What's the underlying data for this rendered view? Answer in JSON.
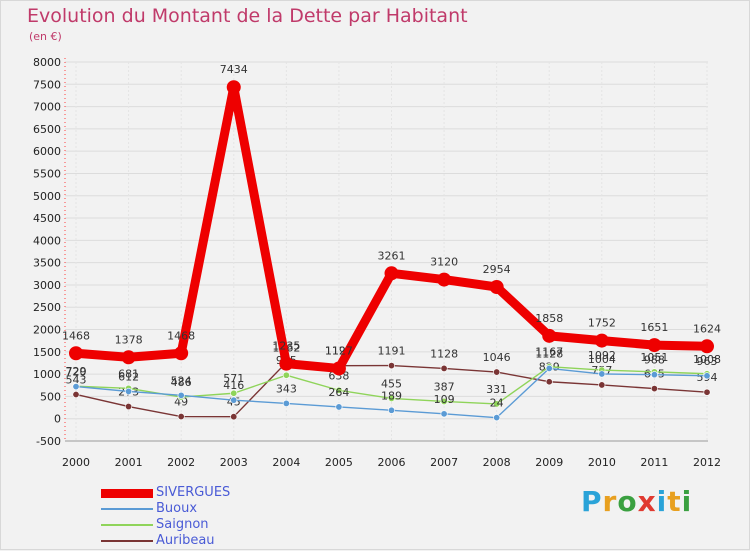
{
  "title": "Evolution du Montant de la Dette par Habitant",
  "subtitle": "(en €)",
  "logo": {
    "letters": [
      "P",
      "r",
      "o",
      "x",
      "i",
      "t",
      "i"
    ],
    "colors": [
      "#2aa3d8",
      "#e8a020",
      "#3aa040",
      "#e03a30",
      "#2aa3d8",
      "#e8a020",
      "#3aa040"
    ]
  },
  "chart_data": {
    "type": "line",
    "title": "Evolution du Montant de la Dette par Habitant",
    "ylabel": "(en €)",
    "xlabel": "",
    "ylim": [
      -500,
      8000
    ],
    "yticks": [
      "-500",
      "0",
      "500",
      "1000",
      "1500",
      "2000",
      "2500",
      "3000",
      "3500",
      "4000",
      "4500",
      "5000",
      "5500",
      "6000",
      "6500",
      "7000",
      "7500",
      "8000"
    ],
    "categories": [
      "2000",
      "2001",
      "2002",
      "2003",
      "2004",
      "2005",
      "2006",
      "2007",
      "2008",
      "2009",
      "2010",
      "2011",
      "2012"
    ],
    "legend_position": "bottom-left",
    "series": [
      {
        "name": "Auribeau",
        "color": "#7a3535",
        "values": [
          543,
          273,
          49,
          45,
          1262,
          1190,
          1191,
          1128,
          1046,
          829,
          757,
          675,
          594
        ],
        "labels": [
          "543",
          "273",
          "49",
          "45",
          "1262",
          "1190",
          "1191",
          "1128",
          "1046",
          "829",
          "757",
          "675",
          "594"
        ]
      },
      {
        "name": "Saignon",
        "color": "#8fd45a",
        "values": [
          729,
          681,
          486,
          571,
          975,
          638,
          455,
          387,
          331,
          1167,
          1092,
          1051,
          1008
        ],
        "labels": [
          "729",
          "681",
          "486",
          "571",
          "975",
          "638",
          "455",
          "387",
          "331",
          "1167",
          "1092",
          "1051",
          "1008"
        ]
      },
      {
        "name": "Buoux",
        "color": "#5b9bd5",
        "values": [
          720,
          612,
          524,
          416,
          343,
          264,
          189,
          109,
          24,
          1128,
          1004,
          988,
          963
        ],
        "labels": [
          "720",
          "612",
          "524",
          "416",
          "343",
          "264",
          "189",
          "109",
          "24",
          "1128",
          "1004",
          "988",
          "963"
        ]
      },
      {
        "name": "SIVERGUES",
        "color": "#ee0000",
        "values": [
          1468,
          1378,
          1468,
          7434,
          1235,
          1127,
          3261,
          3120,
          2954,
          1858,
          1752,
          1651,
          1624
        ],
        "labels": [
          "1468",
          "1378",
          "1468",
          "7434",
          "1235",
          "1127",
          "3261",
          "3120",
          "2954",
          "1858",
          "1752",
          "1651",
          "1624"
        ]
      }
    ],
    "legend_order": [
      "SIVERGUES",
      "Buoux",
      "Saignon",
      "Auribeau"
    ]
  }
}
